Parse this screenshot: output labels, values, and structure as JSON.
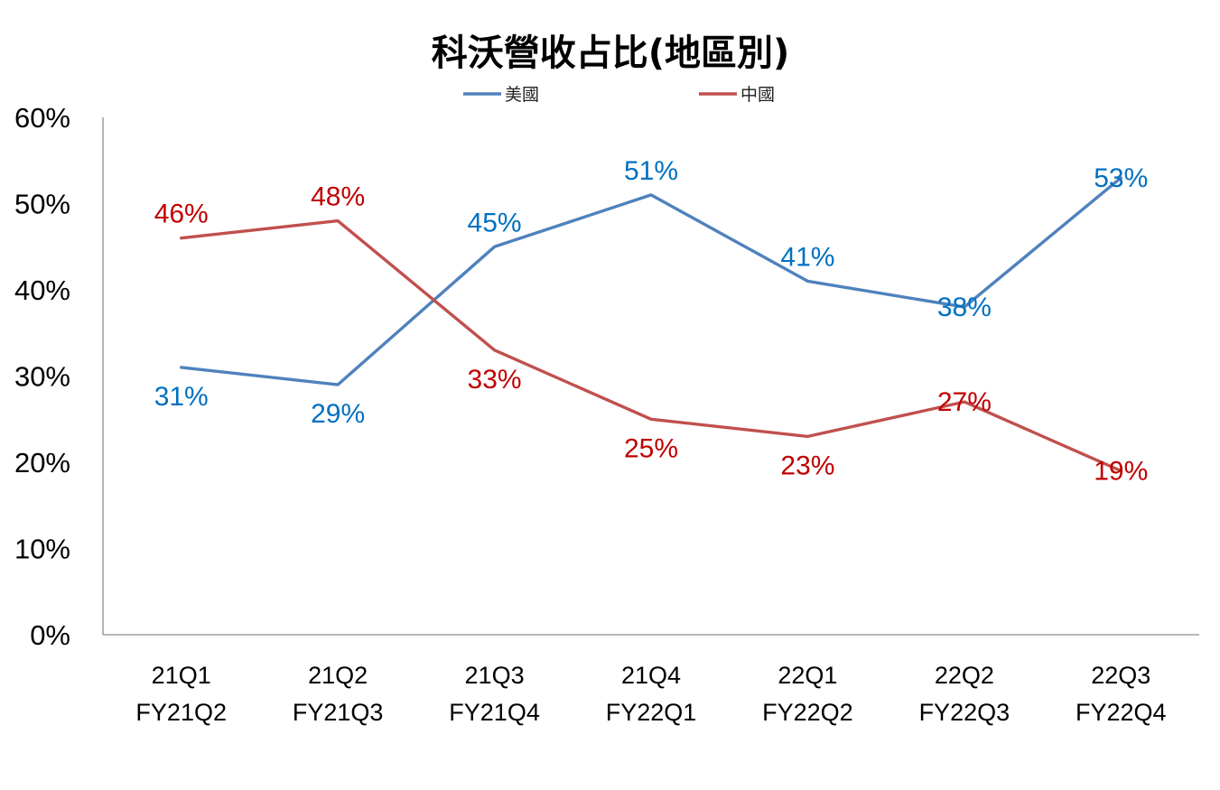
{
  "chart_data": {
    "type": "line",
    "title": "科沃營收占比(地區別)",
    "xlabel": "",
    "ylabel": "",
    "categories": [
      [
        "21Q1",
        "FY21Q2"
      ],
      [
        "21Q2",
        "FY21Q3"
      ],
      [
        "21Q3",
        "FY21Q4"
      ],
      [
        "21Q4",
        "FY22Q1"
      ],
      [
        "22Q1",
        "FY22Q2"
      ],
      [
        "22Q2",
        "FY22Q3"
      ],
      [
        "22Q3",
        "FY22Q4"
      ]
    ],
    "ylim": [
      0,
      60
    ],
    "yticks": [
      "0%",
      "10%",
      "20%",
      "30%",
      "40%",
      "50%",
      "60%"
    ],
    "grid": false,
    "legend_position": "top",
    "series": [
      {
        "name": "美國",
        "color": "#4F81BD",
        "label_color": "#0070C0",
        "values": [
          31,
          29,
          45,
          51,
          41,
          38,
          53
        ],
        "labels": [
          "31%",
          "29%",
          "45%",
          "51%",
          "41%",
          "38%",
          "53%"
        ]
      },
      {
        "name": "中國",
        "color": "#C0504D",
        "label_color": "#C00000",
        "values": [
          46,
          48,
          33,
          25,
          23,
          27,
          19
        ],
        "labels": [
          "46%",
          "48%",
          "33%",
          "25%",
          "23%",
          "27%",
          "19%"
        ]
      }
    ]
  }
}
